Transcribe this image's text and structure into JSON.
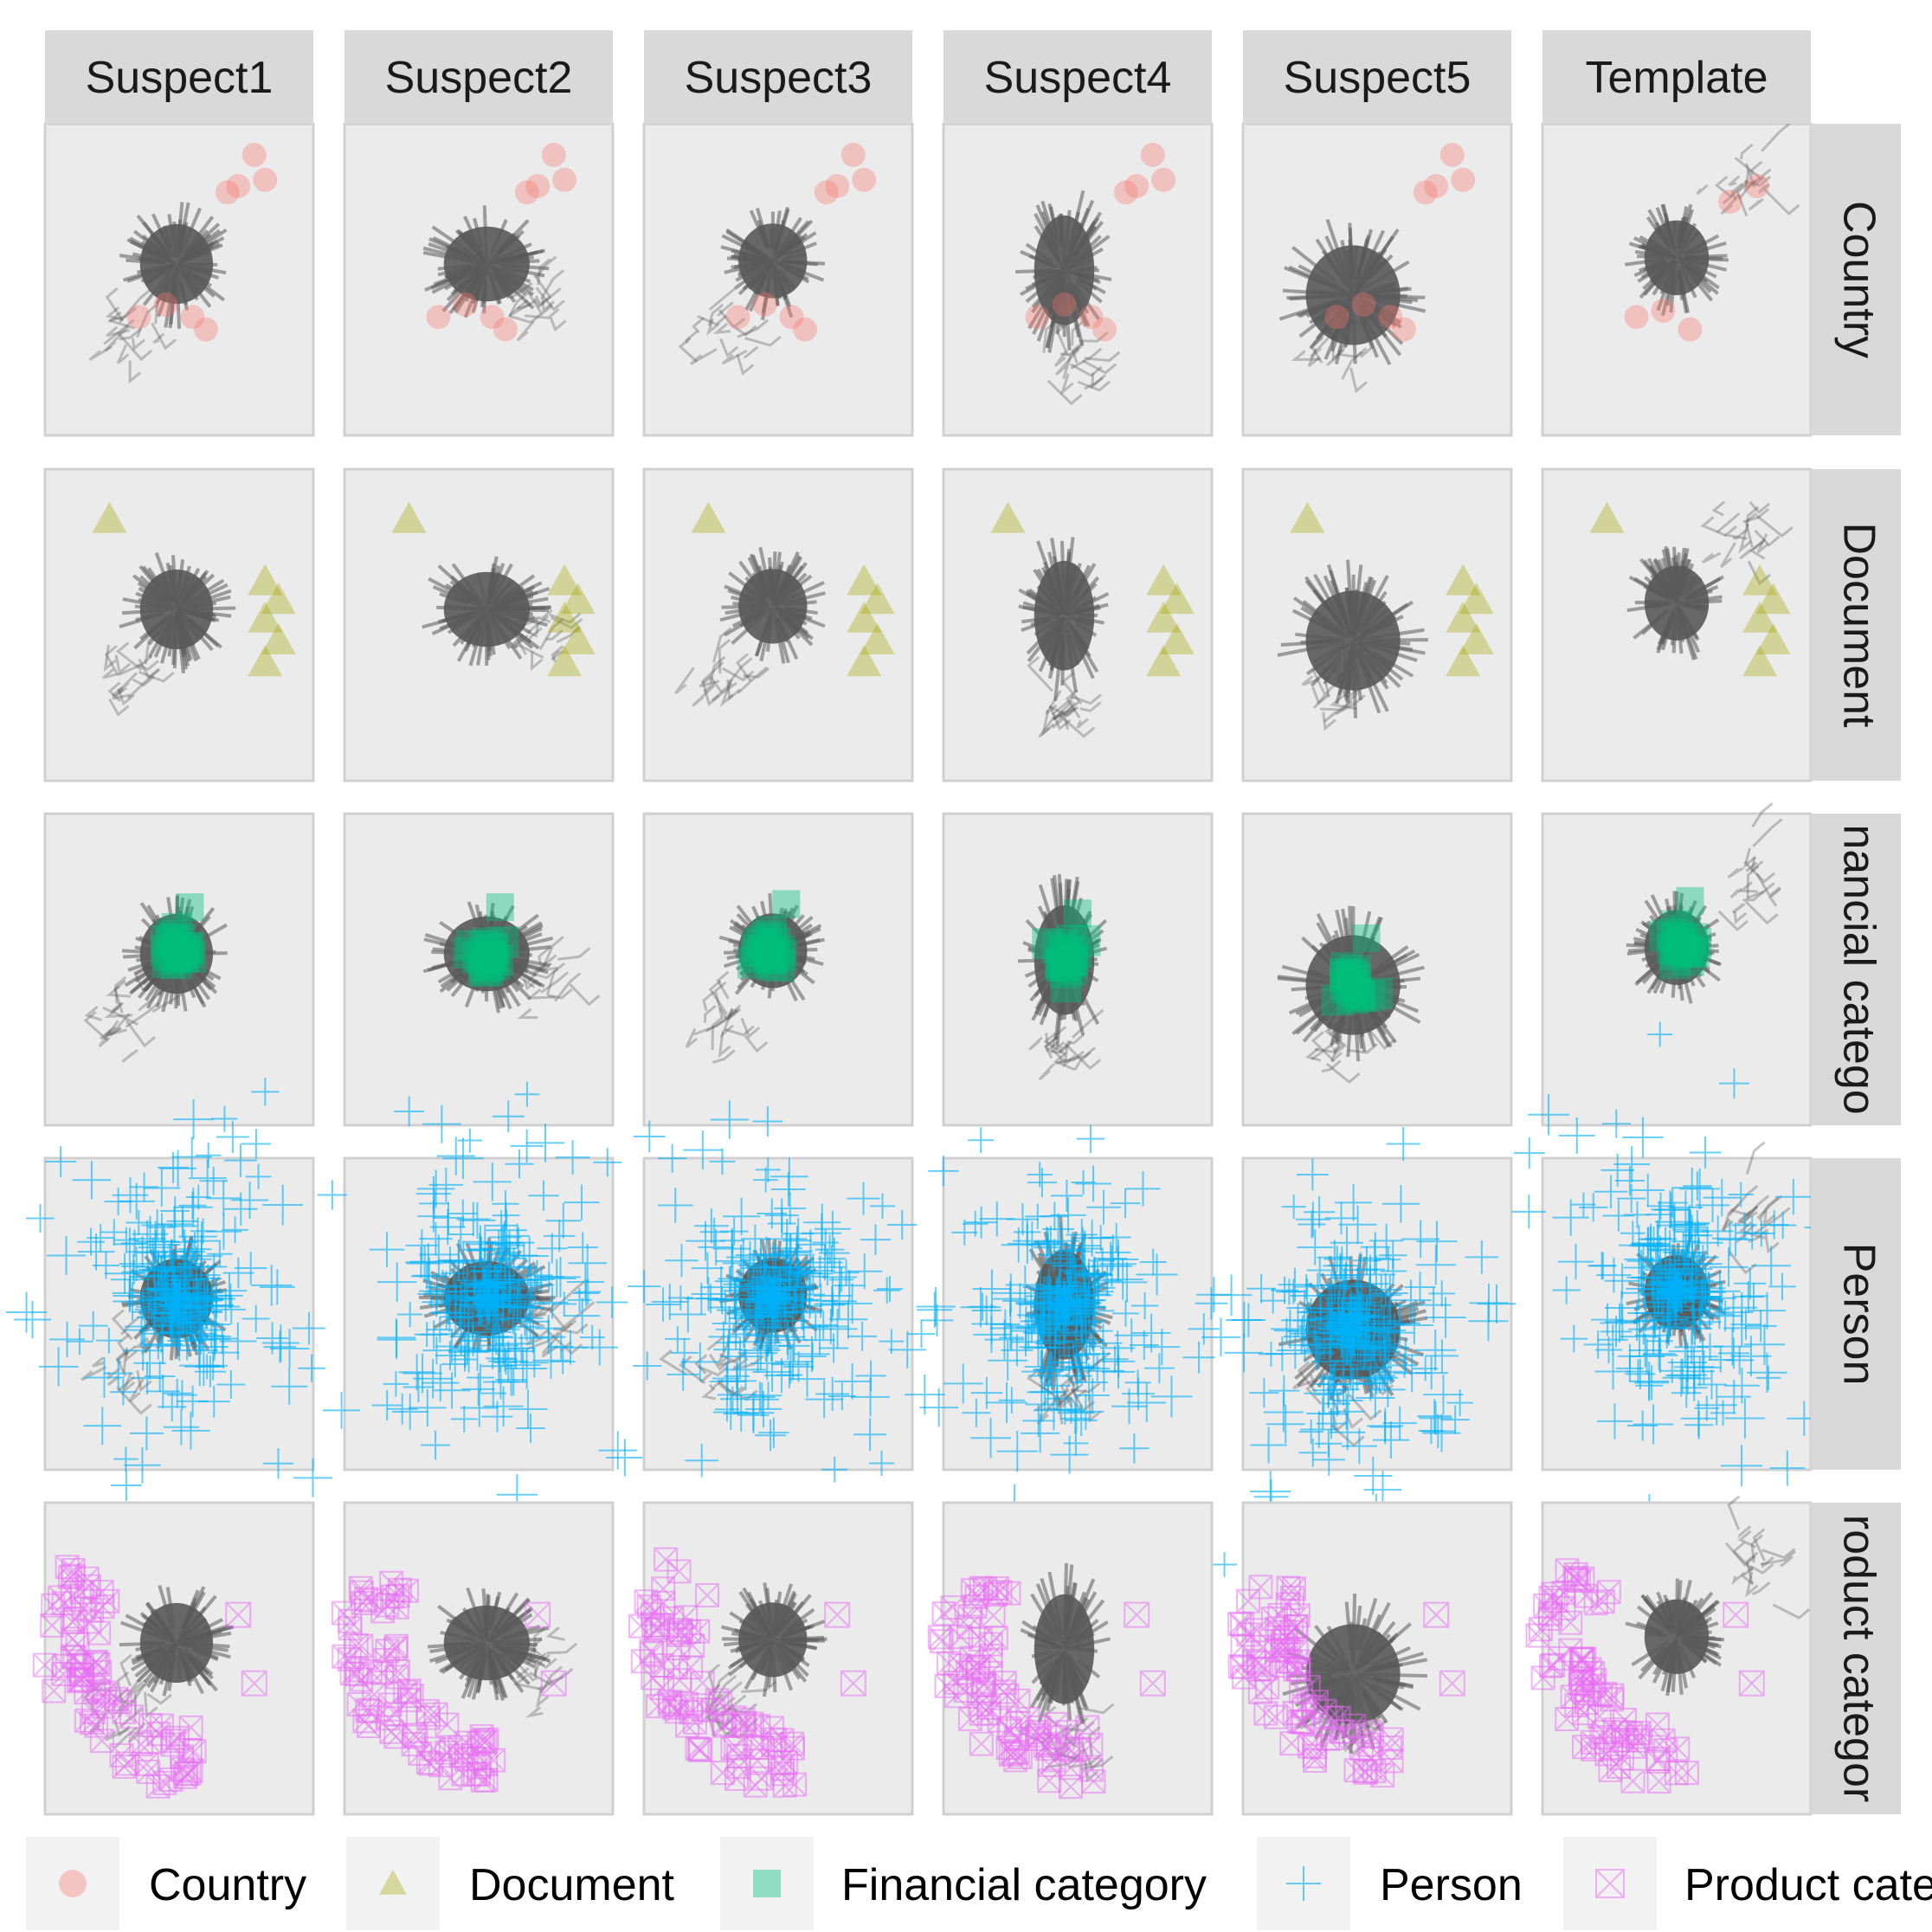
{
  "chart_data": {
    "type": "scatter",
    "description": "Faceted scatter/network layout grid; columns are suspects/template, rows are node categories. Grey arrow clusters represent edges; colored markers represent nodes of the row category.",
    "columns": [
      "Suspect1",
      "Suspect2",
      "Suspect3",
      "Suspect4",
      "Suspect5",
      "Template"
    ],
    "rows": [
      "Country",
      "Document",
      "Financial category",
      "Person",
      "Product category"
    ],
    "row_strip_labels": [
      "Country",
      "Document",
      "nancial catego",
      "Person",
      "roduct categor"
    ],
    "legend": {
      "entries": [
        {
          "label": "Country",
          "shape": "circle",
          "color": "#F8766D"
        },
        {
          "label": "Document",
          "shape": "triangle",
          "color": "#A3A500"
        },
        {
          "label": "Financial category",
          "shape": "square",
          "color": "#00BF7D"
        },
        {
          "label": "Person",
          "shape": "plus",
          "color": "#00B0F6"
        },
        {
          "label": "Product cate",
          "shape": "boxed-x",
          "color": "#E76BF3"
        }
      ],
      "placement": "bottom"
    },
    "colors": {
      "panel_bg": "#EBEBEB",
      "strip_bg": "#D9D9D9",
      "edges": "#595959"
    }
  }
}
